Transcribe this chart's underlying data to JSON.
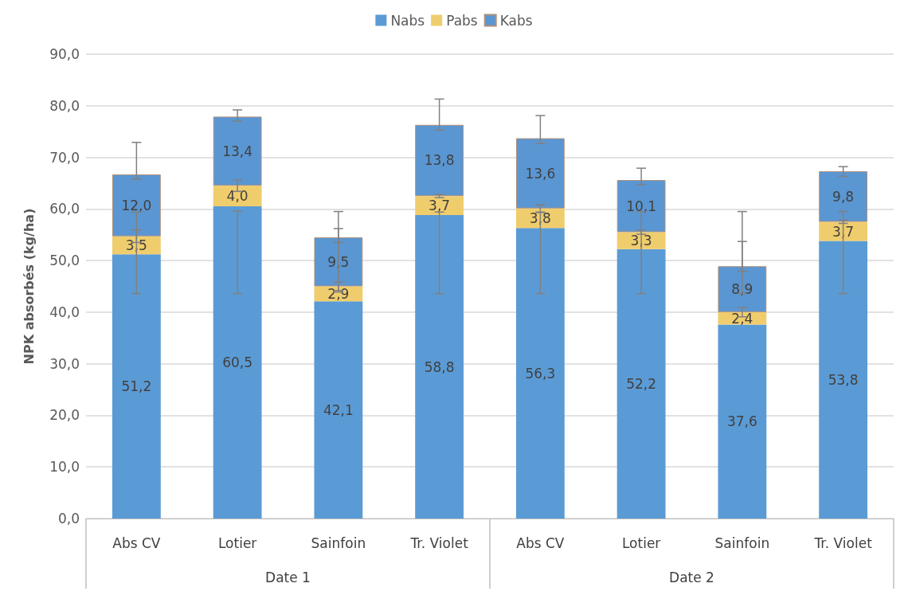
{
  "chart_data": {
    "type": "bar",
    "stacked": true,
    "ylabel": "NPK absorbés (kg/ha)",
    "categories": [
      "Abs CV",
      "Lotier",
      "Sainfoin",
      "Tr. Violet",
      "Abs CV",
      "Lotier",
      "Sainfoin",
      "Tr. Violet"
    ],
    "series": [
      {
        "name": "Nabs",
        "color": "#5b9bd5",
        "values": [
          51.2,
          60.5,
          42.1,
          58.8,
          56.3,
          52.2,
          37.6,
          53.8
        ],
        "value_labels": [
          "51,2",
          "60,5",
          "42,1",
          "58,8",
          "56,3",
          "52,2",
          "37,6",
          "53,8"
        ],
        "errors": [
          [
            43.6,
            59.4
          ],
          [
            43.6,
            59.6
          ],
          [
            43.9,
            59.5
          ],
          [
            43.6,
            59.4
          ],
          [
            43.6,
            59.3
          ],
          [
            43.6,
            59.5
          ],
          [
            43.6,
            59.5
          ],
          [
            43.6,
            59.5
          ]
        ]
      },
      {
        "name": "Pabs",
        "color": "#f0cd6c",
        "values": [
          3.5,
          4.0,
          2.9,
          3.7,
          3.8,
          3.3,
          2.4,
          3.7
        ],
        "value_labels": [
          "3,5",
          "4,0",
          "2,9",
          "3,7",
          "3,8",
          "3,3",
          "2,4",
          "3,7"
        ],
        "errors": [
          1.2,
          1.1,
          0.8,
          0.3,
          0.7,
          0.4,
          0.9,
          0.3
        ]
      },
      {
        "name": "Kabs",
        "color": "#5a96d2",
        "values": [
          12.0,
          13.4,
          9.5,
          13.8,
          13.6,
          10.1,
          8.9,
          9.8
        ],
        "value_labels": [
          "12,0",
          "13,4",
          "9,5",
          "13,8",
          "13,6",
          "10,1",
          "8,9",
          "9,8"
        ],
        "errors": [
          [
            65.8,
            72.9
          ],
          [
            77.0,
            79.2
          ],
          [
            53.5,
            56.2
          ],
          [
            75.3,
            81.3
          ],
          [
            72.7,
            78.1
          ],
          [
            64.7,
            67.9
          ],
          [
            47.9,
            53.7
          ],
          [
            66.3,
            68.2
          ]
        ]
      }
    ],
    "ylim": [
      0,
      90
    ],
    "yticks": [
      {
        "value": 0,
        "label": "0,0"
      },
      {
        "value": 10,
        "label": "10,0"
      },
      {
        "value": 20,
        "label": "20,0"
      },
      {
        "value": 30,
        "label": "30,0"
      },
      {
        "value": 40,
        "label": "40,0"
      },
      {
        "value": 50,
        "label": "50,0"
      },
      {
        "value": 60,
        "label": "60,0"
      },
      {
        "value": 70,
        "label": "70,0"
      },
      {
        "value": 80,
        "label": "80,0"
      },
      {
        "value": 90,
        "label": "90,0"
      }
    ],
    "grid": "y",
    "legend": "top",
    "annotations": [
      "Date 1",
      "Date 2"
    ]
  }
}
